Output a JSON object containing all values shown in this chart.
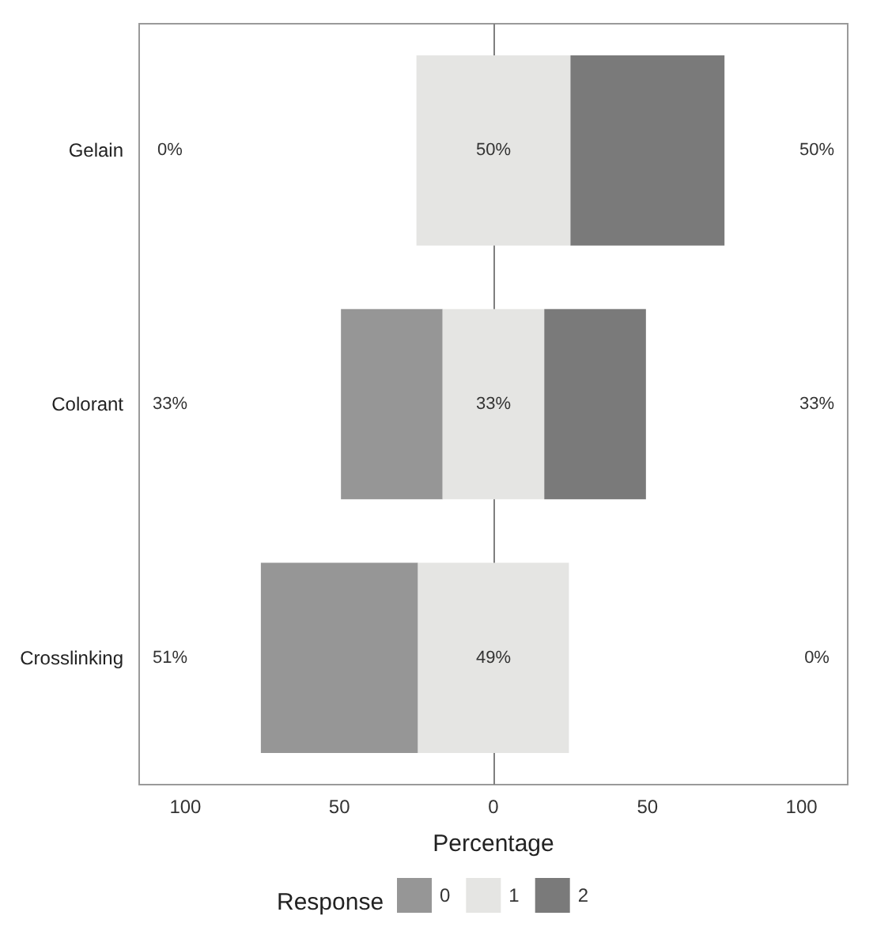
{
  "chart_data": {
    "type": "bar",
    "orientation": "horizontal",
    "xlabel": "Percentage",
    "legend_title": "Response",
    "legend": "bottom",
    "grid": false,
    "categories": [
      "Gelain",
      "Colorant",
      "Crosslinking"
    ],
    "series": [
      {
        "name": "0",
        "color": "#969696",
        "values": [
          0,
          33,
          51
        ],
        "base": [
          null,
          -49.5,
          -75.5
        ],
        "value_labels": [
          "0%",
          "33%",
          "51%"
        ]
      },
      {
        "name": "1",
        "color": "#e5e5e3",
        "values": [
          50,
          33,
          49
        ],
        "base": [
          -25,
          -16.5,
          -24.5
        ],
        "value_labels": [
          "50%",
          "33%",
          "49%"
        ]
      },
      {
        "name": "2",
        "color": "#7a7a7a",
        "values": [
          50,
          33,
          0
        ],
        "base": [
          25,
          16.5,
          null
        ],
        "value_labels": [
          "50%",
          "33%",
          "0%"
        ]
      }
    ],
    "xlim": [
      -115,
      115
    ],
    "xticks": [
      {
        "value": -100,
        "label": "100"
      },
      {
        "value": -50,
        "label": "50"
      },
      0,
      50,
      {
        "value": 100,
        "label": "100"
      }
    ],
    "ref_lines": [
      {
        "axis": "x",
        "value": 0,
        "color": "#7f7f7f"
      }
    ]
  }
}
